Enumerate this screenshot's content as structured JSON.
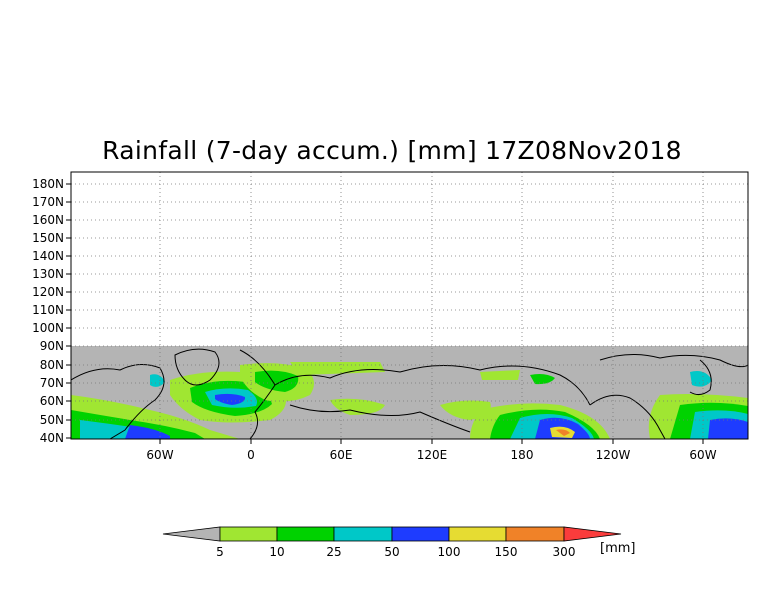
{
  "title": "Rainfall (7-day accum.) [mm] 17Z08Nov2018",
  "map": {
    "lat_ticks": [
      "180N",
      "170N",
      "160N",
      "150N",
      "140N",
      "130N",
      "120N",
      "110N",
      "100N",
      "90N",
      "80N",
      "70N",
      "60N",
      "50N",
      "40N"
    ],
    "lon_ticks": [
      "60W",
      "0",
      "60E",
      "120E",
      "180",
      "120W",
      "60W"
    ],
    "missing_color": "#b4b4b4",
    "grid": "dotted"
  },
  "colorbar": {
    "units": "[mm]",
    "labels": [
      "5",
      "10",
      "25",
      "50",
      "100",
      "150",
      "300"
    ],
    "colors": [
      "#b4b4b4",
      "#a0e632",
      "#00d200",
      "#00c8c8",
      "#1e3cff",
      "#e6dc32",
      "#f08228",
      "#fa3c3c"
    ]
  }
}
